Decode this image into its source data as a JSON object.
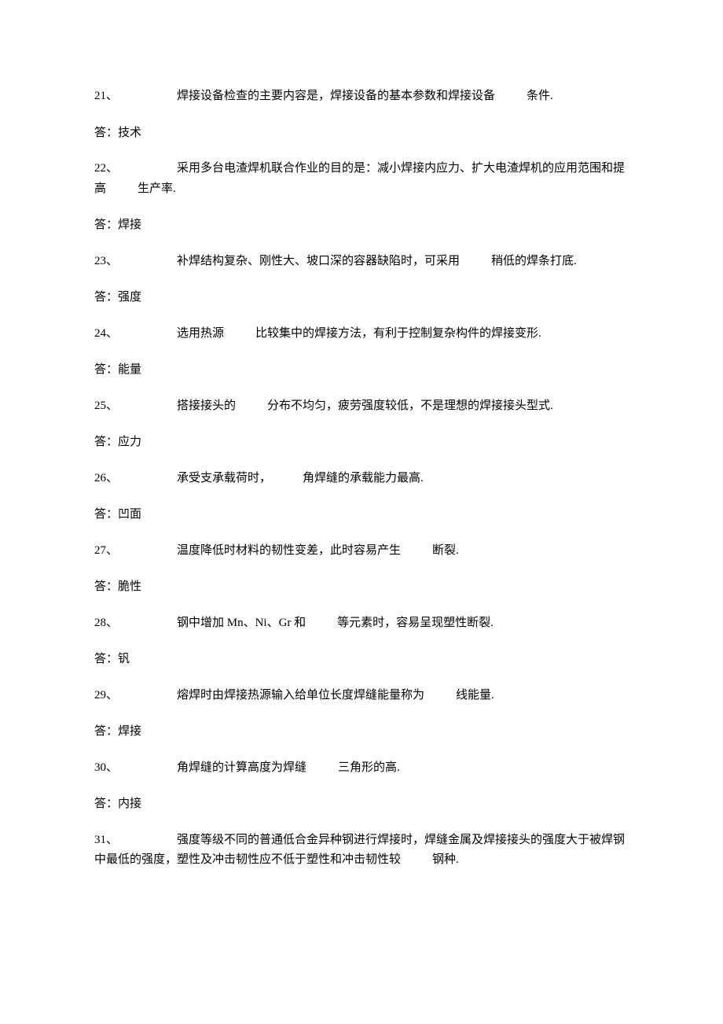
{
  "questions": [
    {
      "num": "21、",
      "text_parts": [
        "焊接设备检查的主要内容是，焊接设备的基本参数和焊接设备",
        "条件."
      ],
      "blanks": [
        1
      ],
      "answer": "答：技术"
    },
    {
      "num": "22、",
      "text_parts": [
        "采用多台电渣焊机联合作业的目的是：减小焊接内应力、扩大电渣焊机的应用范围和提高",
        "生产率."
      ],
      "blanks": [
        1
      ],
      "answer": "答：焊接"
    },
    {
      "num": "23、",
      "text_parts": [
        "补焊结构复杂、刚性大、坡口深的容器缺陷时，可采用",
        "稍低的焊条打底."
      ],
      "blanks": [
        1
      ],
      "answer": "答：强度"
    },
    {
      "num": "24、",
      "text_parts": [
        "选用热源",
        "比较集中的焊接方法，有利于控制复杂构件的焊接变形."
      ],
      "blanks": [
        1
      ],
      "answer": "答：能量"
    },
    {
      "num": "25、",
      "text_parts": [
        "搭接接头的",
        "分布不均匀，疲劳强度较低，不是理想的焊接接头型式."
      ],
      "blanks": [
        1
      ],
      "answer": "答：应力"
    },
    {
      "num": "26、",
      "text_parts": [
        "承受支承载荷时，",
        "角焊缝的承载能力最高."
      ],
      "blanks": [
        1
      ],
      "answer": "答：凹面"
    },
    {
      "num": "27、",
      "text_parts": [
        "温度降低时材料的韧性变差，此时容易产生",
        "断裂."
      ],
      "blanks": [
        1
      ],
      "answer": "答：脆性"
    },
    {
      "num": "28、",
      "text_parts": [
        "钢中增加 Mn、Ni、Gr 和",
        "等元素时，容易呈现塑性断裂."
      ],
      "blanks": [
        1
      ],
      "answer": "答：钒"
    },
    {
      "num": "29、",
      "text_parts": [
        "熔焊时由焊接热源输入给单位长度焊缝能量称为",
        "线能量."
      ],
      "blanks": [
        1
      ],
      "answer": "答：焊接"
    },
    {
      "num": "30、",
      "text_parts": [
        "角焊缝的计算高度为焊缝",
        "三角形的高."
      ],
      "blanks": [
        1
      ],
      "answer": "答：内接"
    },
    {
      "num": "31、",
      "text_parts": [
        "强度等级不同的普通低合金异种钢进行焊接时，焊缝金属及焊接接头的强度大于被焊钢中最低的强度，塑性及冲击韧性应不低于塑性和冲击韧性较",
        "钢种."
      ],
      "blanks": [
        1
      ],
      "answer": ""
    }
  ],
  "styling": {
    "font_size": 15,
    "text_color": "#000000",
    "background_color": "#ffffff",
    "question_spacing": 22,
    "line_height": 1.7,
    "num_width": 105,
    "blank_width": 40
  }
}
